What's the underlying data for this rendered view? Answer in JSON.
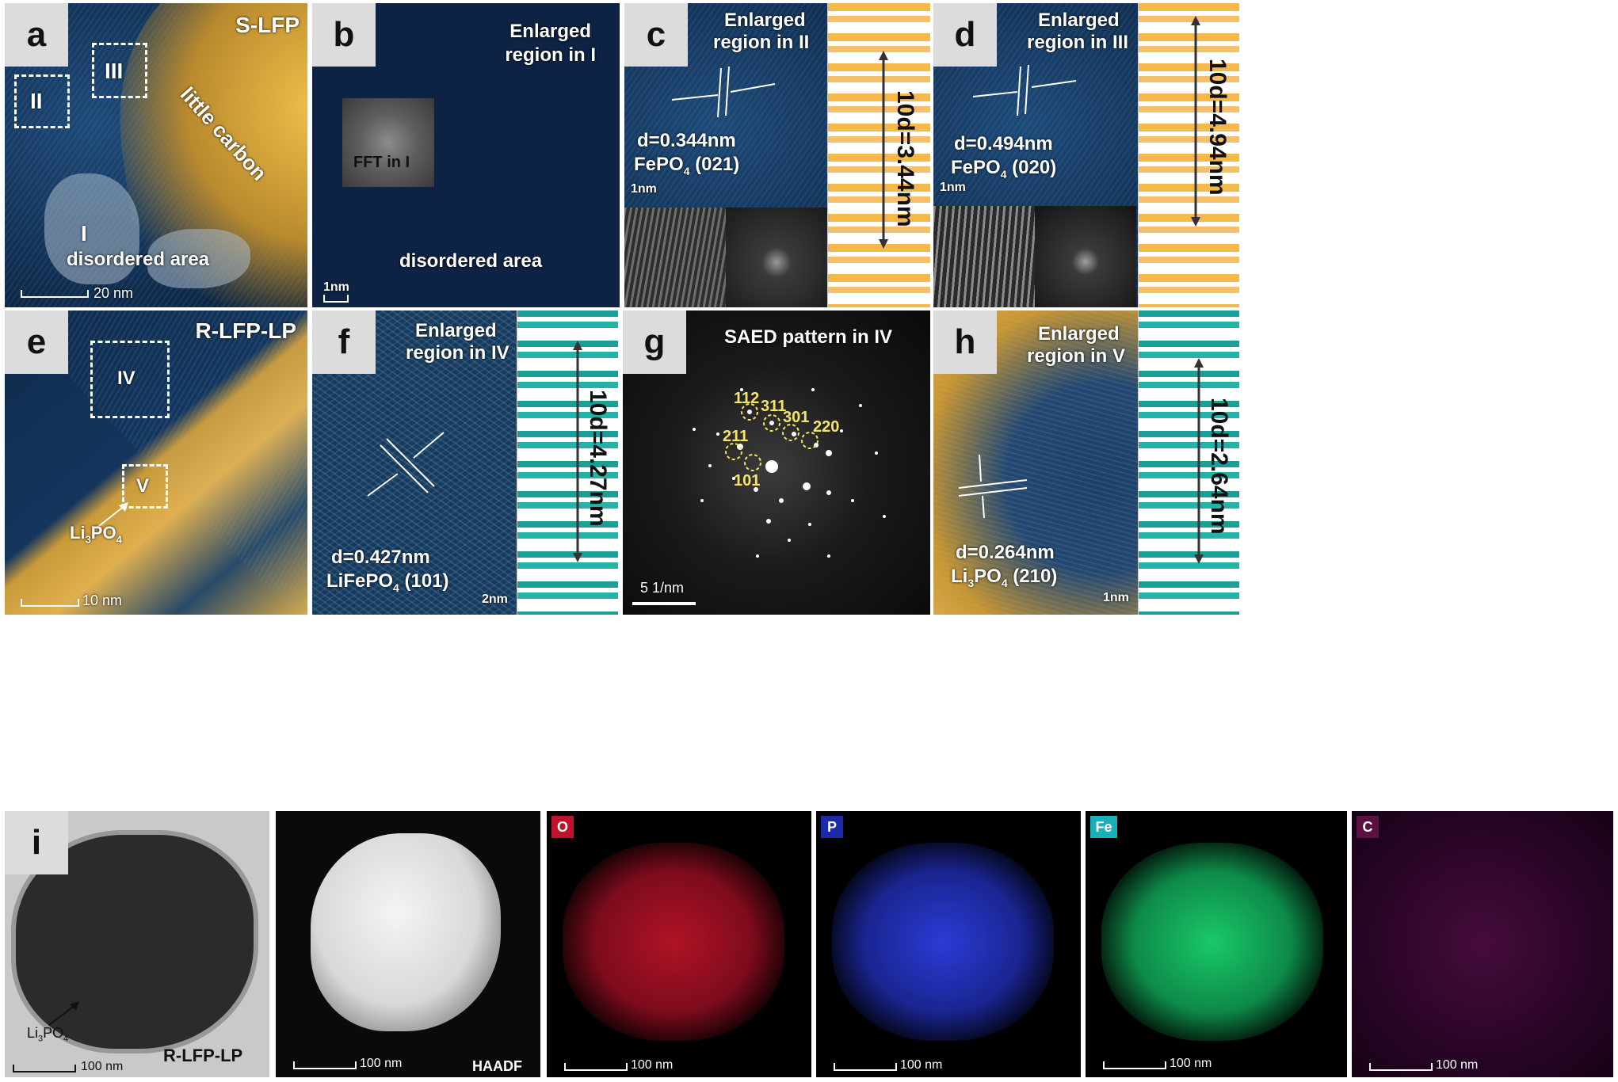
{
  "panel_letters": [
    "a",
    "b",
    "c",
    "d",
    "e",
    "f",
    "g",
    "h",
    "i"
  ],
  "panel_a": {
    "title": "S-LFP",
    "carbon_label": "little carbon",
    "region_II": "II",
    "region_III": "III",
    "region_I": "I",
    "disordered": "disordered area",
    "scale": "20 nm"
  },
  "panel_b": {
    "title_line1": "Enlarged",
    "title_line2": "region in I",
    "fft": "FFT in I",
    "disordered": "disordered area",
    "scale": "1nm"
  },
  "panel_c": {
    "title_line1": "Enlarged",
    "title_line2": "region in II",
    "d_value": "d=0.344nm",
    "phase": "FePO",
    "phase_sub": "4",
    "plane": " (021)",
    "scale": "1nm",
    "ten_d": "10d=3.44nm"
  },
  "panel_d": {
    "title_line1": "Enlarged",
    "title_line2": "region in III",
    "d_value": "d=0.494nm",
    "phase": "FePO",
    "phase_sub": "4",
    "plane": " (020)",
    "scale": "1nm",
    "ten_d": "10d=4.94nm"
  },
  "panel_e": {
    "title": "R-LFP-LP",
    "region_IV": "IV",
    "region_V": "V",
    "phase": "Li",
    "phase_sub1": "3",
    "phase_mid": "PO",
    "phase_sub2": "4",
    "scale": "10 nm"
  },
  "panel_f": {
    "title_line1": "Enlarged",
    "title_line2": "region in IV",
    "d_value": "d=0.427nm",
    "phase": "LiFePO",
    "phase_sub": "4",
    "plane": " (101)",
    "scale": "2nm",
    "ten_d": "10d=4.27nm"
  },
  "panel_g": {
    "title": "SAED pattern in IV",
    "spots": [
      "112",
      "311",
      "301",
      "220",
      "211",
      "101"
    ],
    "scale": "5 1/nm"
  },
  "panel_h": {
    "title_line1": "Enlarged",
    "title_line2": "region in V",
    "d_value": "d=0.264nm",
    "phase": "Li",
    "phase_sub1": "3",
    "phase_mid": "PO",
    "phase_sub2": "4",
    "plane": " (210)",
    "scale": "1nm",
    "ten_d": "10d=2.64nm"
  },
  "panel_i": {
    "phase": "Li",
    "phase_sub1": "3",
    "phase_mid": "PO",
    "phase_sub2": "4",
    "sample": "R-LFP-LP",
    "scale": "100 nm",
    "haadf": "HAADF",
    "maps": [
      {
        "element": "O",
        "color": "#c0122a"
      },
      {
        "element": "P",
        "color": "#2b3bd6"
      },
      {
        "element": "Fe",
        "color": "#19c86a"
      },
      {
        "element": "C",
        "color": "#b0208e"
      }
    ]
  },
  "colors": {
    "tem_blue": "#0f2a4a",
    "carbon_yellow": "#f2c04a",
    "profile_orange": "#f5b84a",
    "profile_teal": "#1a9e96"
  }
}
